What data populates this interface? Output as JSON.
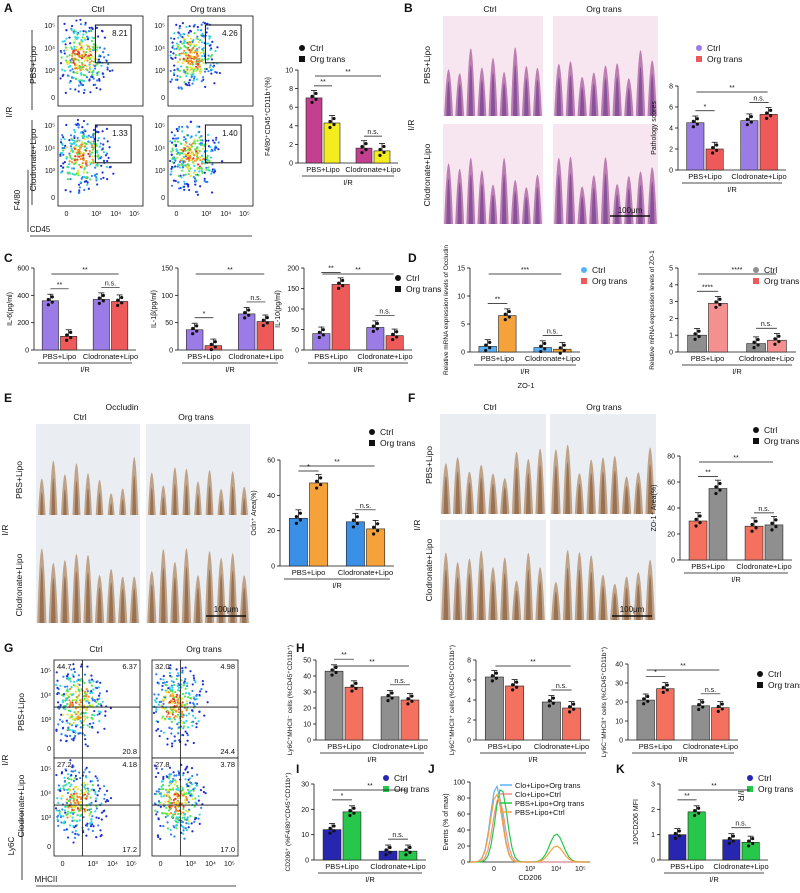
{
  "labels": {
    "panels": [
      "A",
      "B",
      "C",
      "D",
      "E",
      "F",
      "G",
      "H",
      "I",
      "J",
      "K"
    ],
    "ctrl": "Ctrl",
    "org": "Org trans",
    "pbs_lipo": "PBS+Lipo",
    "clod_lipo": "Clodronate+Lipo",
    "ir": "I/R",
    "scale": "100μm"
  },
  "flow": {
    "a_gates": [
      "8.21",
      "4.26",
      "1.33",
      "1.40"
    ],
    "a_xlabel": "CD45",
    "a_ylabel": "F4/80",
    "ticks": [
      "0",
      "10³",
      "10⁴",
      "10⁵"
    ],
    "g_quads": [
      [
        "44.7",
        "6.37",
        "20.8"
      ],
      [
        "32.0",
        "4.98",
        "24.4"
      ],
      [
        "27.2",
        "4.18",
        "17.2"
      ],
      [
        "27.8",
        "3.78",
        "17.0"
      ]
    ],
    "g_xlabel": "MHCII",
    "g_ylabel": "Ly6C"
  },
  "titles": {
    "occludin": "Occludin",
    "zo1": "ZO-1"
  },
  "colors": {
    "purple": "#9b7be6",
    "red": "#ee5a5a",
    "magenta": "#c2408f",
    "yellow": "#f5ec1f",
    "blue": "#3a8fe6",
    "orange": "#f5a23a",
    "gray": "#8f8f8f",
    "salmon": "#f4705f",
    "navy": "#2626b0",
    "green": "#26c74a",
    "lightblue": "#5ab0f5",
    "lightred": "#f49090"
  },
  "chart_data": [
    {
      "id": "A",
      "type": "bar",
      "ylabel": "F4/80⁺CD45⁺CD11b⁺(%)",
      "ylim": [
        0,
        10
      ],
      "ticks": [
        "0",
        "2",
        "4",
        "6",
        "8",
        "10"
      ],
      "categories": [
        "PBS+Lipo",
        "Clodronate+Lipo"
      ],
      "series": [
        {
          "name": "Ctrl",
          "values": [
            7.0,
            1.6
          ]
        },
        {
          "name": "Org trans",
          "values": [
            4.3,
            1.3
          ]
        }
      ],
      "sig": [
        "**",
        "n.s.",
        "**"
      ]
    },
    {
      "id": "B",
      "type": "bar",
      "ylabel": "Pathology scores",
      "ylim": [
        0,
        8
      ],
      "ticks": [
        "0",
        "2",
        "4",
        "6",
        "8"
      ],
      "categories": [
        "PBS+Lipo",
        "Clodronate+Lipo"
      ],
      "series": [
        {
          "name": "Ctrl",
          "values": [
            4.5,
            4.7
          ]
        },
        {
          "name": "Org trans",
          "values": [
            2.0,
            5.3
          ]
        }
      ],
      "sig": [
        "*",
        "n.s.",
        "**"
      ]
    },
    {
      "id": "C1",
      "type": "bar",
      "ylabel": "IL-6(pg/ml)",
      "ylim": [
        0,
        600
      ],
      "ticks": [
        "0",
        "200",
        "400",
        "600"
      ],
      "categories": [
        "PBS+Lipo",
        "Clodronate+Lipo"
      ],
      "series": [
        {
          "name": "Ctrl",
          "values": [
            360,
            370
          ]
        },
        {
          "name": "Org trans",
          "values": [
            100,
            355
          ]
        }
      ],
      "sig": [
        "**",
        "n.s.",
        "**"
      ]
    },
    {
      "id": "C2",
      "type": "bar",
      "ylabel": "IL-1β(pg/ml)",
      "ylim": [
        0,
        150
      ],
      "ticks": [
        "0",
        "50",
        "100",
        "150"
      ],
      "categories": [
        "PBS+Lipo",
        "Clodronate+Lipo"
      ],
      "series": [
        {
          "name": "Ctrl",
          "values": [
            37,
            66
          ]
        },
        {
          "name": "Org trans",
          "values": [
            8,
            52
          ]
        }
      ],
      "sig": [
        "*",
        "n.s.",
        "**"
      ]
    },
    {
      "id": "C3",
      "type": "bar",
      "ylabel": "IL-10(pg/ml)",
      "ylim": [
        0,
        200
      ],
      "ticks": [
        "0",
        "50",
        "100",
        "150",
        "200"
      ],
      "categories": [
        "PBS+Lipo",
        "Clodronate+Lipo"
      ],
      "series": [
        {
          "name": "Ctrl",
          "values": [
            40,
            55
          ]
        },
        {
          "name": "Org trans",
          "values": [
            160,
            35
          ]
        }
      ],
      "sig": [
        "**",
        "n.s.",
        "**"
      ]
    },
    {
      "id": "D1",
      "type": "bar",
      "ylabel": "Relative mRNA expression levels of Occludin",
      "ylim": [
        0,
        15
      ],
      "ticks": [
        "0",
        "5",
        "10",
        "15"
      ],
      "categories": [
        "PBS+Lipo",
        "Clodronate+Lipo"
      ],
      "series": [
        {
          "name": "Ctrl",
          "values": [
            1.0,
            0.8
          ]
        },
        {
          "name": "Org trans",
          "values": [
            6.5,
            0.5
          ]
        }
      ],
      "sig": [
        "**",
        "n.s.",
        "***"
      ]
    },
    {
      "id": "D2",
      "type": "bar",
      "ylabel": "Relative mRNA expression levels of ZO-1",
      "ylim": [
        0,
        5
      ],
      "ticks": [
        "0",
        "1",
        "2",
        "3",
        "4",
        "5"
      ],
      "categories": [
        "PBS+Lipo",
        "Clodronate+Lipo"
      ],
      "series": [
        {
          "name": "Ctrl",
          "values": [
            1.0,
            0.5
          ]
        },
        {
          "name": "Org trans",
          "values": [
            2.9,
            0.7
          ]
        }
      ],
      "sig": [
        "****",
        "n.s.",
        "****"
      ]
    },
    {
      "id": "E",
      "type": "bar",
      "ylabel": "Ocln⁺ Area(%)",
      "ylim": [
        0,
        60
      ],
      "ticks": [
        "0",
        "20",
        "40",
        "60"
      ],
      "categories": [
        "PBS+Lipo",
        "Clodronate+Lipo"
      ],
      "series": [
        {
          "name": "Ctrl",
          "values": [
            27,
            25
          ]
        },
        {
          "name": "Org trans",
          "values": [
            47,
            21
          ]
        }
      ],
      "sig": [
        "*",
        "n.s.",
        "**"
      ]
    },
    {
      "id": "F",
      "type": "bar",
      "ylabel": "ZO-1⁺ Area(%)",
      "ylim": [
        0,
        80
      ],
      "ticks": [
        "0",
        "20",
        "40",
        "60",
        "80"
      ],
      "categories": [
        "PBS+Lipo",
        "Clodronate+Lipo"
      ],
      "series": [
        {
          "name": "Ctrl",
          "values": [
            30,
            26
          ]
        },
        {
          "name": "Org trans",
          "values": [
            55,
            27
          ]
        }
      ],
      "sig": [
        "**",
        "n.s.",
        "**"
      ]
    },
    {
      "id": "H1",
      "type": "bar",
      "ylabel": "Ly6C⁺MHCII⁻ cells (%CD45⁺CD11b⁺)",
      "ylim": [
        0,
        50
      ],
      "ticks": [
        "0",
        "10",
        "20",
        "30",
        "40",
        "50"
      ],
      "categories": [
        "PBS+Lipo",
        "Clodronate+Lipo"
      ],
      "series": [
        {
          "name": "Ctrl",
          "values": [
            43,
            27
          ]
        },
        {
          "name": "Org trans",
          "values": [
            33,
            25
          ]
        }
      ],
      "sig": [
        "**",
        "n.s.",
        "**"
      ]
    },
    {
      "id": "H2",
      "type": "bar",
      "ylabel": "Ly6C⁺MHCII⁺ cells (%CD45⁺CD11b⁺)",
      "ylim": [
        0,
        8
      ],
      "ticks": [
        "0",
        "2",
        "4",
        "6",
        "8"
      ],
      "categories": [
        "PBS+Lipo",
        "Clodronate+Lipo"
      ],
      "series": [
        {
          "name": "Ctrl",
          "values": [
            6.3,
            3.8
          ]
        },
        {
          "name": "Org trans",
          "values": [
            5.4,
            3.2
          ]
        }
      ],
      "sig": [
        "",
        "n.s.",
        "**"
      ]
    },
    {
      "id": "H3",
      "type": "bar",
      "ylabel": "Ly6C⁻MHCII⁺ cells (%CD45⁺CD11b⁺)",
      "ylim": [
        0,
        40
      ],
      "ticks": [
        "0",
        "10",
        "20",
        "30",
        "40"
      ],
      "categories": [
        "PBS+Lipo",
        "Clodronate+Lipo"
      ],
      "series": [
        {
          "name": "Ctrl",
          "values": [
            21,
            18
          ]
        },
        {
          "name": "Org trans",
          "values": [
            27,
            17
          ]
        }
      ],
      "sig": [
        "*",
        "n.s.",
        "**"
      ]
    },
    {
      "id": "I",
      "type": "bar",
      "ylabel": "CD206⁺ (%F4/80⁺CD45⁺CD11b⁺)",
      "ylim": [
        0,
        30
      ],
      "ticks": [
        "0",
        "10",
        "20",
        "30"
      ],
      "categories": [
        "PBS+Lipo",
        "Clodronate+Lipo"
      ],
      "series": [
        {
          "name": "Ctrl",
          "values": [
            12,
            3.5
          ]
        },
        {
          "name": "Org trans",
          "values": [
            19,
            3.5
          ]
        }
      ],
      "sig": [
        "*",
        "n.s.",
        "**"
      ]
    },
    {
      "id": "J",
      "type": "line",
      "ylabel": "Events (% of max)",
      "xlabel": "CD206",
      "yticks": [
        "0",
        "20",
        "40",
        "60",
        "80",
        "100"
      ],
      "xticks": [
        "0",
        "10³",
        "10⁴",
        "10⁵"
      ],
      "series": [
        {
          "name": "Clo+Lipo+Org trans"
        },
        {
          "name": "Clo+Lipo+Ctrl"
        },
        {
          "name": "PBS+Lipo+Org trans"
        },
        {
          "name": "PBS+Lipo+Ctrl"
        }
      ]
    },
    {
      "id": "K",
      "type": "bar",
      "ylabel": "10³CD206 MFI",
      "ylim": [
        0,
        3
      ],
      "ticks": [
        "0",
        "1",
        "2",
        "3"
      ],
      "categories": [
        "PBS+Lipo",
        "Clodronate+Lipo"
      ],
      "series": [
        {
          "name": "Ctrl",
          "values": [
            1.0,
            0.8
          ]
        },
        {
          "name": "Org trans",
          "values": [
            1.9,
            0.7
          ]
        }
      ],
      "sig": [
        "**",
        "n.s.",
        "**"
      ]
    }
  ]
}
